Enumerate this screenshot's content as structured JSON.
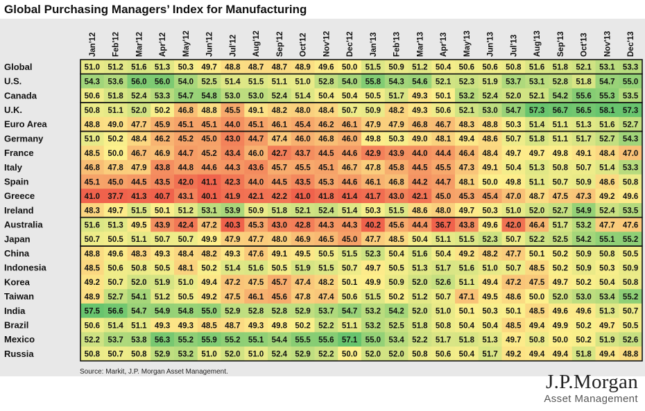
{
  "chart_data": {
    "type": "heatmap",
    "title": "Global Purchasing Managers’ Index for Manufacturing",
    "columns": [
      "Jan'12",
      "Feb'12",
      "Mar'12",
      "Apr'12",
      "May'12",
      "Jun'12",
      "Jul'12",
      "Aug'12",
      "Sep'12",
      "Oct'12",
      "Nov'12",
      "Dec'12",
      "Jan'13",
      "Feb'13",
      "Mar'13",
      "Apr'13",
      "May'13",
      "Jun'13",
      "Jul'13",
      "Aug'13",
      "Sep'13",
      "Oct'13",
      "Nov'13",
      "Dec'13"
    ],
    "rows": [
      {
        "name": "Global",
        "values": [
          51.0,
          51.2,
          51.6,
          51.3,
          50.3,
          49.7,
          48.8,
          48.7,
          48.7,
          48.9,
          49.6,
          50.0,
          51.5,
          50.9,
          51.2,
          50.4,
          50.6,
          50.6,
          50.8,
          51.6,
          51.8,
          52.1,
          53.1,
          53.3
        ]
      },
      {
        "name": "U.S.",
        "values": [
          54.3,
          53.6,
          56.0,
          56.0,
          54.0,
          52.5,
          51.4,
          51.5,
          51.1,
          51.0,
          52.8,
          54.0,
          55.8,
          54.3,
          54.6,
          52.1,
          52.3,
          51.9,
          53.7,
          53.1,
          52.8,
          51.8,
          54.7,
          55.0
        ]
      },
      {
        "name": "Canada",
        "values": [
          50.6,
          51.8,
          52.4,
          53.3,
          54.7,
          54.8,
          53.0,
          53.0,
          52.4,
          51.4,
          50.4,
          50.4,
          50.5,
          51.7,
          49.3,
          50.1,
          53.2,
          52.4,
          52.0,
          52.1,
          54.2,
          55.6,
          55.3,
          53.5
        ]
      },
      {
        "name": "U.K.",
        "values": [
          50.8,
          51.1,
          52.0,
          50.2,
          46.8,
          48.8,
          45.5,
          49.1,
          48.2,
          48.0,
          48.4,
          50.7,
          50.9,
          48.2,
          49.3,
          50.6,
          52.1,
          53.0,
          54.7,
          57.3,
          56.7,
          56.5,
          58.1,
          57.3
        ]
      },
      {
        "name": "Euro Area",
        "values": [
          48.8,
          49.0,
          47.7,
          45.9,
          45.1,
          45.1,
          44.0,
          45.1,
          46.1,
          45.4,
          46.2,
          46.1,
          47.9,
          47.9,
          46.8,
          46.7,
          48.3,
          48.8,
          50.3,
          51.4,
          51.1,
          51.3,
          51.6,
          52.7
        ]
      },
      {
        "name": "Germany",
        "values": [
          51.0,
          50.2,
          48.4,
          46.2,
          45.2,
          45.0,
          43.0,
          44.7,
          47.4,
          46.0,
          46.8,
          46.0,
          49.8,
          50.3,
          49.0,
          48.1,
          49.4,
          48.6,
          50.7,
          51.8,
          51.1,
          51.7,
          52.7,
          54.3
        ]
      },
      {
        "name": "France",
        "values": [
          48.5,
          50.0,
          46.7,
          46.9,
          44.7,
          45.2,
          43.4,
          46.0,
          42.7,
          43.7,
          44.5,
          44.6,
          42.9,
          43.9,
          44.0,
          44.4,
          46.4,
          48.4,
          49.7,
          49.7,
          49.8,
          49.1,
          48.4,
          47.0
        ]
      },
      {
        "name": "Italy",
        "values": [
          46.8,
          47.8,
          47.9,
          43.8,
          44.8,
          44.6,
          44.3,
          43.6,
          45.7,
          45.5,
          45.1,
          46.7,
          47.8,
          45.8,
          44.5,
          45.5,
          47.3,
          49.1,
          50.4,
          51.3,
          50.8,
          50.7,
          51.4,
          53.3
        ]
      },
      {
        "name": "Spain",
        "values": [
          45.1,
          45.0,
          44.5,
          43.5,
          42.0,
          41.1,
          42.3,
          44.0,
          44.5,
          43.5,
          45.3,
          44.6,
          46.1,
          46.8,
          44.2,
          44.7,
          48.1,
          50.0,
          49.8,
          51.1,
          50.7,
          50.9,
          48.6,
          50.8
        ]
      },
      {
        "name": "Greece",
        "values": [
          41.0,
          37.7,
          41.3,
          40.7,
          43.1,
          40.1,
          41.9,
          42.1,
          42.2,
          41.0,
          41.8,
          41.4,
          41.7,
          43.0,
          42.1,
          45.0,
          45.3,
          45.4,
          47.0,
          48.7,
          47.5,
          47.3,
          49.2,
          49.6
        ]
      },
      {
        "name": "Ireland",
        "values": [
          48.3,
          49.7,
          51.5,
          50.1,
          51.2,
          53.1,
          53.9,
          50.9,
          51.8,
          52.1,
          52.4,
          51.4,
          50.3,
          51.5,
          48.6,
          48.0,
          49.7,
          50.3,
          51.0,
          52.0,
          52.7,
          54.9,
          52.4,
          53.5
        ]
      },
      {
        "name": "Australia",
        "values": [
          51.6,
          51.3,
          49.5,
          43.9,
          42.4,
          47.2,
          40.3,
          45.3,
          43.0,
          42.8,
          44.3,
          44.3,
          40.2,
          45.6,
          44.4,
          36.7,
          43.8,
          49.6,
          42.0,
          46.4,
          51.7,
          53.2,
          47.7,
          47.6
        ]
      },
      {
        "name": "Japan",
        "values": [
          50.7,
          50.5,
          51.1,
          50.7,
          50.7,
          49.9,
          47.9,
          47.7,
          48.0,
          46.9,
          46.5,
          45.0,
          47.7,
          48.5,
          50.4,
          51.1,
          51.5,
          52.3,
          50.7,
          52.2,
          52.5,
          54.2,
          55.1,
          55.2
        ]
      },
      {
        "name": "China",
        "values": [
          48.8,
          49.6,
          48.3,
          49.3,
          48.4,
          48.2,
          49.3,
          47.6,
          49.1,
          49.5,
          50.5,
          51.5,
          52.3,
          50.4,
          51.6,
          50.4,
          49.2,
          48.2,
          47.7,
          50.1,
          50.2,
          50.9,
          50.8,
          50.5
        ]
      },
      {
        "name": "Indonesia",
        "values": [
          48.5,
          50.6,
          50.8,
          50.5,
          48.1,
          50.2,
          51.4,
          51.6,
          50.5,
          51.9,
          51.5,
          50.7,
          49.7,
          50.5,
          51.3,
          51.7,
          51.6,
          51.0,
          50.7,
          48.5,
          50.2,
          50.9,
          50.3,
          50.9
        ]
      },
      {
        "name": "Korea",
        "values": [
          49.2,
          50.7,
          52.0,
          51.9,
          51.0,
          49.4,
          47.2,
          47.5,
          45.7,
          47.4,
          48.2,
          50.1,
          49.9,
          50.9,
          52.0,
          52.6,
          51.1,
          49.4,
          47.2,
          47.5,
          49.7,
          50.2,
          50.4,
          50.8
        ]
      },
      {
        "name": "Taiwan",
        "values": [
          48.9,
          52.7,
          54.1,
          51.2,
          50.5,
          49.2,
          47.5,
          46.1,
          45.6,
          47.8,
          47.4,
          50.6,
          51.5,
          50.2,
          51.2,
          50.7,
          47.1,
          49.5,
          48.6,
          50.0,
          52.0,
          53.0,
          53.4,
          55.2
        ]
      },
      {
        "name": "India",
        "values": [
          57.5,
          56.6,
          54.7,
          54.9,
          54.8,
          55.0,
          52.9,
          52.8,
          52.8,
          52.9,
          53.7,
          54.7,
          53.2,
          54.2,
          52.0,
          51.0,
          50.1,
          50.3,
          50.1,
          48.5,
          49.6,
          49.6,
          51.3,
          50.7
        ]
      },
      {
        "name": "Brazil",
        "values": [
          50.6,
          51.4,
          51.1,
          49.3,
          49.3,
          48.5,
          48.7,
          49.3,
          49.8,
          50.2,
          52.2,
          51.1,
          53.2,
          52.5,
          51.8,
          50.8,
          50.4,
          50.4,
          48.5,
          49.4,
          49.9,
          50.2,
          49.7,
          50.5
        ]
      },
      {
        "name": "Mexico",
        "values": [
          52.2,
          53.7,
          53.8,
          56.3,
          55.2,
          55.9,
          55.2,
          55.1,
          54.4,
          55.5,
          55.6,
          57.1,
          55.0,
          53.4,
          52.2,
          51.7,
          51.8,
          51.3,
          49.7,
          50.8,
          50.0,
          50.2,
          51.9,
          52.6
        ]
      },
      {
        "name": "Russia",
        "values": [
          50.8,
          50.7,
          50.8,
          52.9,
          53.2,
          51.0,
          52.0,
          51.0,
          52.4,
          52.9,
          52.2,
          50.0,
          52.0,
          52.0,
          50.8,
          50.6,
          50.4,
          51.7,
          49.2,
          49.4,
          49.4,
          51.8,
          49.4,
          48.8
        ]
      }
    ],
    "groups": [
      [
        0
      ],
      [
        1,
        2
      ],
      [
        3,
        4
      ],
      [
        5,
        6,
        7,
        8,
        9,
        10
      ],
      [
        11,
        12
      ],
      [
        13,
        14,
        15,
        16,
        17,
        18,
        19,
        20
      ]
    ],
    "color_scale": {
      "low": "#f0624c",
      "mid": "#fdf08c",
      "high": "#68c46e"
    }
  },
  "source": "Source: Markit, J.P. Morgan Asset Management.",
  "logo": {
    "main": "J.P.Morgan",
    "sub": "Asset Management"
  }
}
